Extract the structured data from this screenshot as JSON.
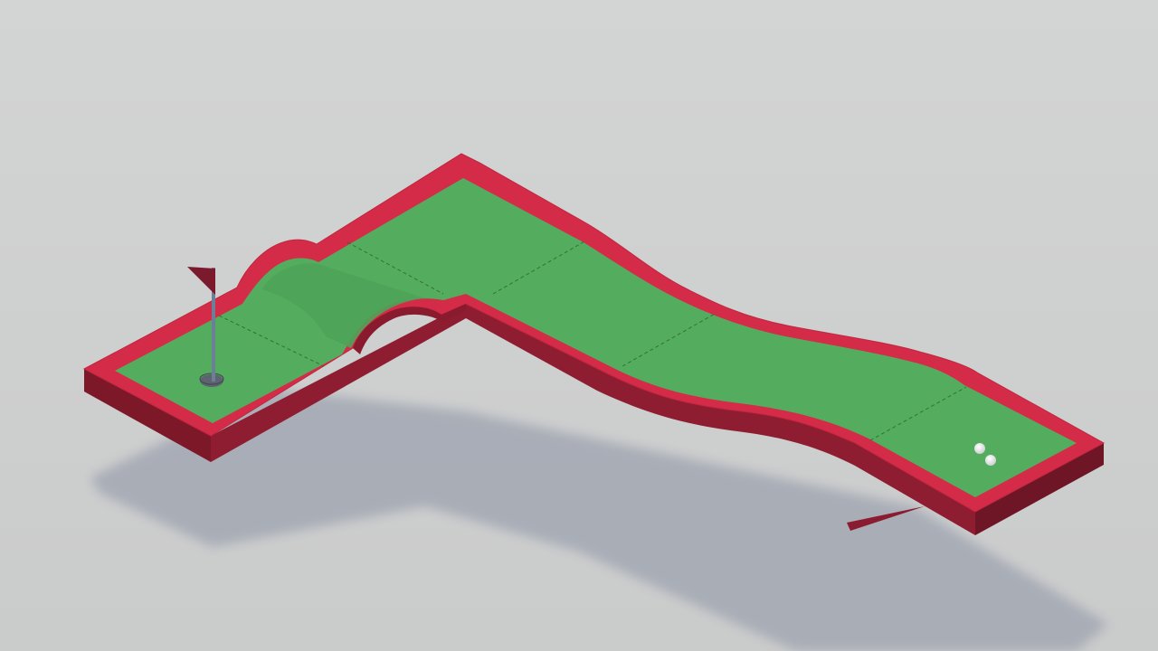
{
  "scene": {
    "title": "",
    "elements": {
      "course": "mini-golf-course",
      "hole": "golf-hole",
      "flag": "pin-flag",
      "balls": [
        "golf-ball",
        "golf-ball"
      ],
      "aim": "aim-direction-indicator"
    }
  },
  "colors": {
    "background_top": "#d2d3d3",
    "background_bottom": "#cbcccc",
    "shadow": "#a2a7b2",
    "wall_top": "#d42c48",
    "wall_side": "#8c1c30",
    "wall_dark": "#6e1526",
    "green": "#54ad5e",
    "green_shade": "#4c9e58",
    "green_light": "#5bb766",
    "seam": "#2f6a37",
    "flag": "#7a1a2c",
    "pole": "#6d7f96",
    "hole": "#5d6470",
    "ball": "#ffffff",
    "aim": "#8a1c32"
  }
}
